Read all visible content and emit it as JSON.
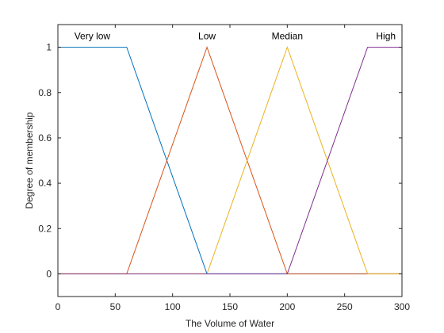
{
  "chart_data": {
    "type": "line",
    "title": "",
    "xlabel": "The Volume of Water",
    "ylabel": "Degree of membership",
    "xlim": [
      0,
      300
    ],
    "ylim": [
      -0.1,
      1.1
    ],
    "xticks": [
      0,
      50,
      100,
      150,
      200,
      250,
      300
    ],
    "yticks": [
      0,
      0.2,
      0.4,
      0.6,
      0.8,
      1
    ],
    "ytick_labels": [
      "0",
      "0.2",
      "0.4",
      "0.6",
      "0.8",
      "1"
    ],
    "grid": false,
    "series": [
      {
        "name": "Very low",
        "color": "#0072BD",
        "x": [
          0,
          60,
          130,
          300
        ],
        "y": [
          1,
          1,
          0,
          0
        ]
      },
      {
        "name": "Low",
        "color": "#D95319",
        "x": [
          0,
          60,
          130,
          200,
          300
        ],
        "y": [
          0,
          0,
          1,
          0,
          0
        ]
      },
      {
        "name": "Median",
        "color": "#EDB120",
        "x": [
          0,
          130,
          200,
          270,
          300
        ],
        "y": [
          0,
          0,
          1,
          0,
          0
        ]
      },
      {
        "name": "High",
        "color": "#7E2F8E",
        "x": [
          0,
          200,
          270,
          300
        ],
        "y": [
          0,
          0,
          1,
          1
        ]
      }
    ],
    "annotations": [
      {
        "text": "Very low",
        "x": 30,
        "y": 1.05
      },
      {
        "text": "Low",
        "x": 130,
        "y": 1.05
      },
      {
        "text": "Median",
        "x": 200,
        "y": 1.05
      },
      {
        "text": "High",
        "x": 286,
        "y": 1.05
      }
    ]
  }
}
